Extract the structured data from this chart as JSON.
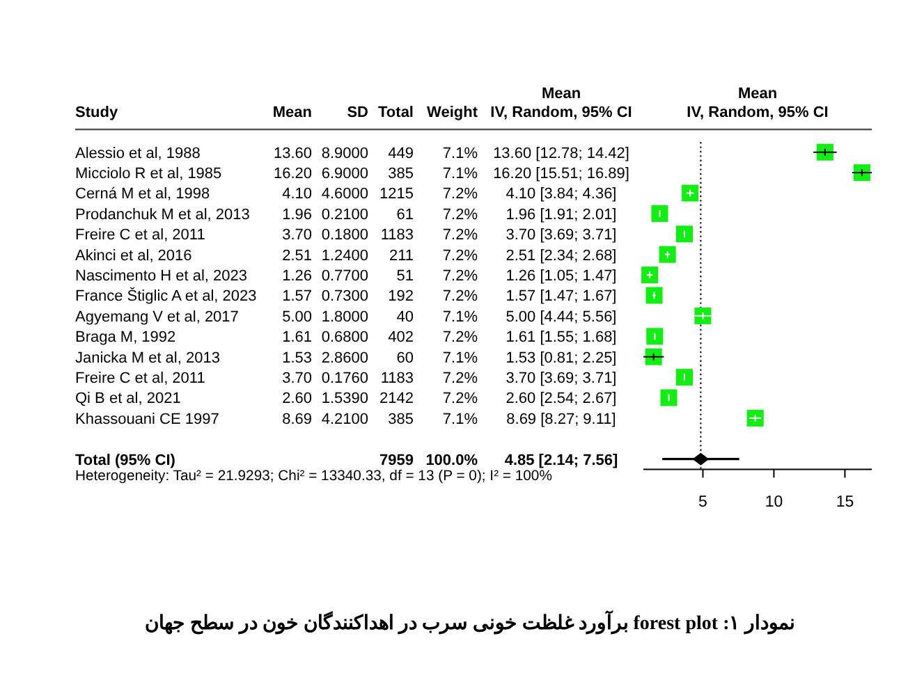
{
  "chart_data": [
    {
      "type": "scatter",
      "orientation": "horizontal",
      "xlabel": "Mean\nIV, Random, 95% CI",
      "categories": [
        null,
        null,
        null,
        null,
        null,
        null,
        null,
        null,
        null,
        null,
        null,
        null,
        null,
        null,
        null,
        null
      ],
      "series": [
        {
          "marker": "square",
          "color": "#11ee11",
          "values": [
            13.6,
            16.2,
            4.1,
            1.96,
            3.7,
            2.51,
            1.26,
            1.57,
            5.0,
            1.61,
            1.53,
            3.7,
            2.6,
            8.69,
            null,
            null
          ],
          "errors": [
            [
              12.78,
              14.42
            ],
            [
              15.51,
              16.89
            ],
            [
              3.84,
              4.36
            ],
            [
              1.91,
              2.01
            ],
            null,
            [
              2.34,
              2.68
            ],
            [
              1.05,
              1.47
            ],
            [
              1.47,
              1.67
            ],
            [
              4.44,
              5.56
            ],
            [
              1.55,
              1.68
            ],
            [
              0.81,
              2.25
            ],
            null,
            [
              2.54,
              2.67
            ],
            [
              8.27,
              9.11
            ],
            null,
            null
          ]
        },
        {
          "marker": "diamond",
          "color": "#000000",
          "values": [
            null,
            null,
            null,
            null,
            null,
            null,
            null,
            null,
            null,
            null,
            null,
            null,
            null,
            null,
            null,
            4.85
          ],
          "errors": [
            null,
            null,
            null,
            null,
            null,
            null,
            null,
            null,
            null,
            null,
            null,
            null,
            null,
            null,
            null,
            [
              2.14,
              7.56
            ]
          ]
        }
      ],
      "xlim": [
        0.81,
        16.89
      ],
      "xticks": [
        5,
        10,
        15
      ],
      "ref_lines": [
        {
          "axis": "x",
          "value": 4.85,
          "line_style": "dotted"
        }
      ],
      "annotations": [
        "نمودار ۱: forest plot برآورد غلظت خونی سرب در اهداکنندگان خون در سطح جهان"
      ]
    },
    {
      "type": "other",
      "ylabel": "Study",
      "categories": [
        "Alessio et al, 1988",
        "Micciolo R et al, 1985",
        "Cerná M et al, 1998",
        "Prodanchuk M et al, 2013",
        "Freire C et al, 2011",
        "Akinci et al, 2016",
        "Nascimento H et al, 2023",
        "France Štiglic A et al, 2023",
        "Agyemang V et al, 2017",
        "Braga M, 1992",
        "Janicka M et al, 2013",
        "Freire C et al, 2011",
        "Qi B et al, 2021",
        "Khassouani CE 1997",
        null,
        "Total (95% CI)"
      ],
      "series": [
        {
          "name": "Mean",
          "values": [
            13.6,
            16.2,
            4.1,
            1.96,
            3.7,
            2.51,
            1.26,
            1.57,
            5.0,
            1.61,
            1.53,
            3.7,
            2.6,
            8.69,
            null,
            null
          ],
          "value_labels": [
            "13.60",
            "16.20",
            "4.10",
            "1.96",
            "3.70",
            "2.51",
            "1.26",
            "1.57",
            "5.00",
            "1.61",
            "1.53",
            "3.70",
            "2.60",
            "8.69",
            null,
            null
          ]
        },
        {
          "name": "SD",
          "values": [
            8.9,
            6.9,
            4.6,
            0.21,
            0.18,
            1.24,
            0.77,
            0.73,
            1.8,
            0.68,
            2.86,
            0.176,
            1.539,
            4.21,
            null,
            null
          ],
          "value_labels": [
            "8.9000",
            "6.9000",
            "4.6000",
            "0.2100",
            "0.1800",
            "1.2400",
            "0.7700",
            "0.7300",
            "1.8000",
            "0.6800",
            "2.8600",
            "0.1760",
            "1.5390",
            "4.2100",
            null,
            null
          ]
        },
        {
          "name": "Total",
          "values": [
            449,
            385,
            1215,
            61,
            1183,
            211,
            51,
            192,
            40,
            402,
            60,
            1183,
            2142,
            385,
            null,
            7959
          ],
          "value_labels": [
            "449",
            "385",
            "1215",
            "61",
            "1183",
            "211",
            "51",
            "192",
            "40",
            "402",
            "60",
            "1183",
            "2142",
            "385",
            null,
            "7959"
          ]
        },
        {
          "name": "Weight",
          "values": [
            7.1,
            7.1,
            7.2,
            7.2,
            7.2,
            7.2,
            7.2,
            7.2,
            7.1,
            7.2,
            7.1,
            7.2,
            7.2,
            7.1,
            null,
            100.0
          ],
          "value_labels": [
            "7.1%",
            "7.1%",
            "7.2%",
            "7.2%",
            "7.2%",
            "7.2%",
            "7.2%",
            "7.2%",
            "7.1%",
            "7.2%",
            "7.1%",
            "7.2%",
            "7.2%",
            "7.1%",
            null,
            "100.0%"
          ]
        },
        {
          "name": "Mean\nIV, Random, 95% CI",
          "values": [
            13.6,
            16.2,
            4.1,
            1.96,
            3.7,
            2.51,
            1.26,
            1.57,
            5.0,
            1.61,
            1.53,
            3.7,
            2.6,
            8.69,
            null,
            4.85
          ],
          "value_labels": [
            "13.60 [12.78; 14.42]",
            "16.20 [15.51; 16.89]",
            "4.10 [3.84; 4.36]",
            "1.96 [1.91; 2.01]",
            "3.70 [3.69; 3.71]",
            "2.51 [2.34; 2.68]",
            "1.26 [1.05; 1.47]",
            "1.57 [1.47; 1.67]",
            "5.00 [4.44; 5.56]",
            "1.61 [1.55; 1.68]",
            "1.53 [0.81; 2.25]",
            "3.70 [3.69; 3.71]",
            "2.60 [2.54; 2.67]",
            "8.69 [8.27; 9.11]",
            null,
            "4.85 [2.14; 7.56]"
          ]
        }
      ],
      "annotations": [
        "Heterogeneity: Tau² = 21.9293; Chi² = 13340.33, df = 13 (P = 0); I² = 100%"
      ]
    }
  ]
}
